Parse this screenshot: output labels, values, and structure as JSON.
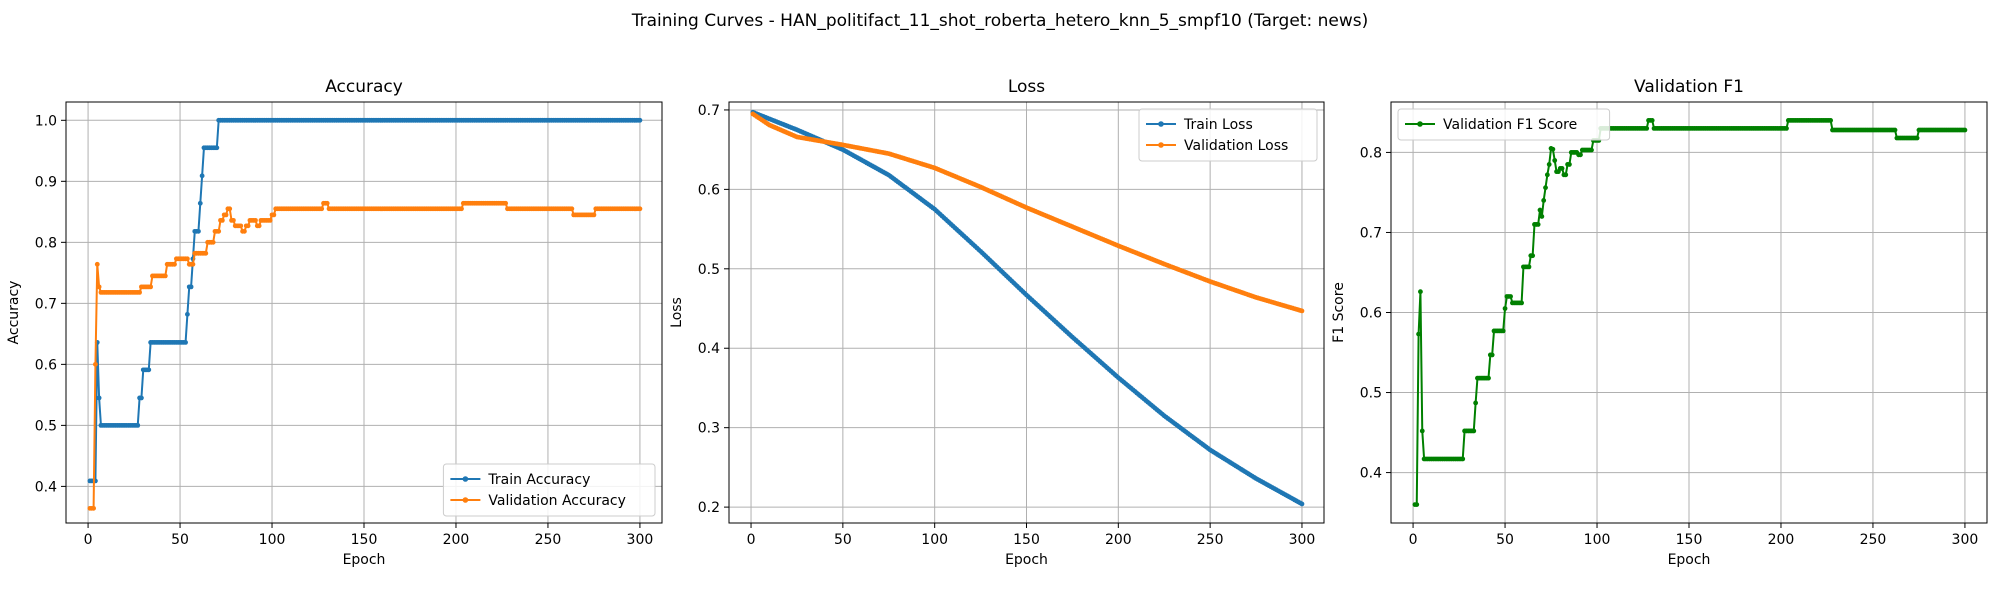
{
  "suptitle": "Training Curves - HAN_politifact_11_shot_roberta_hetero_knn_5_smpf10 (Target: news)",
  "colors": {
    "train": "#1f77b4",
    "val": "#ff7f0e",
    "f1": "#008000",
    "grid": "#b0b0b0"
  },
  "chart_data": [
    {
      "type": "line",
      "title": "Accuracy",
      "xlabel": "Epoch",
      "ylabel": "Accuracy",
      "xlim": [
        -12,
        312
      ],
      "ylim": [
        0.34,
        1.03
      ],
      "xticks": [
        0,
        50,
        100,
        150,
        200,
        250,
        300
      ],
      "yticks": [
        0.4,
        0.5,
        0.6,
        0.7,
        0.8,
        0.9,
        1.0
      ],
      "ytick_labels": [
        "0.4",
        "0.5",
        "0.6",
        "0.7",
        "0.8",
        "0.9",
        "1.0"
      ],
      "grid": true,
      "legend_position": "lower right",
      "series": [
        {
          "name": "Train Accuracy",
          "color": "#1f77b4",
          "steps": [
            [
              1,
              0.409
            ],
            [
              5,
              0.636
            ],
            [
              6,
              0.545
            ],
            [
              7,
              0.5
            ],
            [
              28,
              0.545
            ],
            [
              30,
              0.591
            ],
            [
              34,
              0.636
            ],
            [
              54,
              0.682
            ],
            [
              55,
              0.727
            ],
            [
              57,
              0.773
            ],
            [
              58,
              0.818
            ],
            [
              61,
              0.864
            ],
            [
              62,
              0.909
            ],
            [
              63,
              0.955
            ],
            [
              71,
              1.0
            ],
            [
              300,
              1.0
            ]
          ]
        },
        {
          "name": "Validation Accuracy",
          "color": "#ff7f0e",
          "steps": [
            [
              1,
              0.364
            ],
            [
              4,
              0.6
            ],
            [
              5,
              0.764
            ],
            [
              6,
              0.727
            ],
            [
              7,
              0.718
            ],
            [
              29,
              0.727
            ],
            [
              35,
              0.745
            ],
            [
              43,
              0.764
            ],
            [
              48,
              0.773
            ],
            [
              55,
              0.764
            ],
            [
              58,
              0.782
            ],
            [
              65,
              0.8
            ],
            [
              69,
              0.818
            ],
            [
              72,
              0.836
            ],
            [
              74,
              0.845
            ],
            [
              76,
              0.855
            ],
            [
              78,
              0.836
            ],
            [
              80,
              0.827
            ],
            [
              84,
              0.818
            ],
            [
              86,
              0.827
            ],
            [
              88,
              0.836
            ],
            [
              92,
              0.827
            ],
            [
              94,
              0.836
            ],
            [
              100,
              0.845
            ],
            [
              102,
              0.855
            ],
            [
              128,
              0.864
            ],
            [
              131,
              0.855
            ],
            [
              204,
              0.864
            ],
            [
              228,
              0.855
            ],
            [
              264,
              0.845
            ],
            [
              276,
              0.855
            ],
            [
              300,
              0.855
            ]
          ]
        }
      ]
    },
    {
      "type": "line",
      "title": "Loss",
      "xlabel": "Epoch",
      "ylabel": "Loss",
      "xlim": [
        -12,
        312
      ],
      "ylim": [
        0.18,
        0.71
      ],
      "xticks": [
        0,
        50,
        100,
        150,
        200,
        250,
        300
      ],
      "yticks": [
        0.2,
        0.3,
        0.4,
        0.5,
        0.6,
        0.7
      ],
      "ytick_labels": [
        "0.2",
        "0.3",
        "0.4",
        "0.5",
        "0.6",
        "0.7"
      ],
      "grid": true,
      "legend_position": "upper right",
      "series": [
        {
          "name": "Train Loss",
          "color": "#1f77b4",
          "points": [
            [
              1,
              0.697
            ],
            [
              25,
              0.675
            ],
            [
              50,
              0.65
            ],
            [
              75,
              0.618
            ],
            [
              100,
              0.575
            ],
            [
              125,
              0.522
            ],
            [
              150,
              0.467
            ],
            [
              175,
              0.414
            ],
            [
              200,
              0.363
            ],
            [
              225,
              0.315
            ],
            [
              250,
              0.272
            ],
            [
              275,
              0.236
            ],
            [
              300,
              0.204
            ]
          ]
        },
        {
          "name": "Validation Loss",
          "color": "#ff7f0e",
          "points": [
            [
              1,
              0.695
            ],
            [
              10,
              0.681
            ],
            [
              25,
              0.666
            ],
            [
              50,
              0.656
            ],
            [
              75,
              0.645
            ],
            [
              100,
              0.627
            ],
            [
              125,
              0.603
            ],
            [
              150,
              0.577
            ],
            [
              175,
              0.553
            ],
            [
              200,
              0.529
            ],
            [
              225,
              0.506
            ],
            [
              250,
              0.484
            ],
            [
              275,
              0.464
            ],
            [
              300,
              0.447
            ]
          ]
        }
      ]
    },
    {
      "type": "line",
      "title": "Validation F1",
      "xlabel": "Epoch",
      "ylabel": "F1 Score",
      "xlim": [
        -12,
        312
      ],
      "ylim": [
        0.337,
        0.863
      ],
      "xticks": [
        0,
        50,
        100,
        150,
        200,
        250,
        300
      ],
      "yticks": [
        0.4,
        0.5,
        0.6,
        0.7,
        0.8
      ],
      "ytick_labels": [
        "0.4",
        "0.5",
        "0.6",
        "0.7",
        "0.8"
      ],
      "grid": true,
      "legend_position": "upper left",
      "series": [
        {
          "name": "Validation F1 Score",
          "color": "#008000",
          "steps": [
            [
              1,
              0.36
            ],
            [
              3,
              0.573
            ],
            [
              4,
              0.626
            ],
            [
              5,
              0.452
            ],
            [
              6,
              0.417
            ],
            [
              28,
              0.452
            ],
            [
              34,
              0.487
            ],
            [
              35,
              0.518
            ],
            [
              42,
              0.547
            ],
            [
              44,
              0.577
            ],
            [
              50,
              0.605
            ],
            [
              51,
              0.62
            ],
            [
              54,
              0.612
            ],
            [
              60,
              0.657
            ],
            [
              64,
              0.671
            ],
            [
              66,
              0.71
            ],
            [
              69,
              0.728
            ],
            [
              70,
              0.72
            ],
            [
              71,
              0.74
            ],
            [
              72,
              0.756
            ],
            [
              73,
              0.772
            ],
            [
              74,
              0.785
            ],
            [
              75,
              0.805
            ],
            [
              76,
              0.804
            ],
            [
              77,
              0.79
            ],
            [
              78,
              0.776
            ],
            [
              80,
              0.78
            ],
            [
              82,
              0.772
            ],
            [
              84,
              0.785
            ],
            [
              86,
              0.8
            ],
            [
              90,
              0.797
            ],
            [
              92,
              0.803
            ],
            [
              98,
              0.815
            ],
            [
              102,
              0.83
            ],
            [
              128,
              0.84
            ],
            [
              131,
              0.83
            ],
            [
              204,
              0.84
            ],
            [
              228,
              0.828
            ],
            [
              263,
              0.818
            ],
            [
              275,
              0.828
            ],
            [
              300,
              0.828
            ]
          ]
        }
      ]
    }
  ]
}
